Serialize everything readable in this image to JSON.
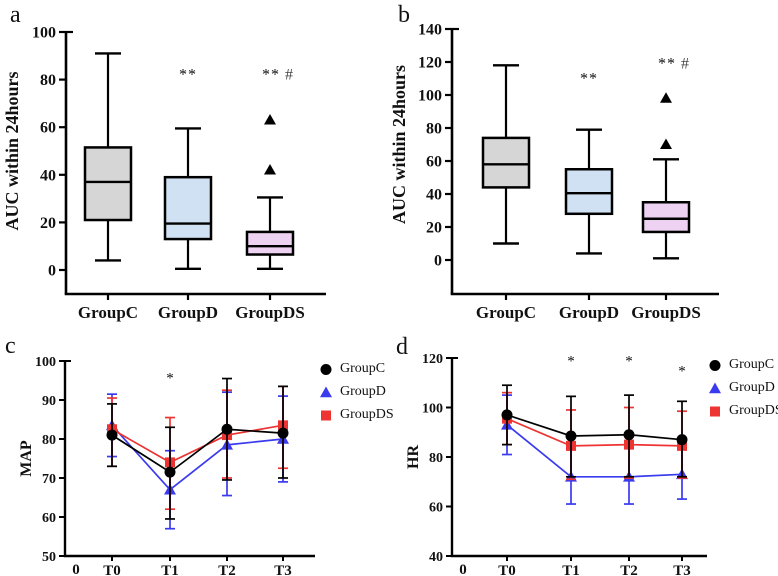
{
  "figure": {
    "panels": {
      "a": {
        "label": "a"
      },
      "b": {
        "label": "b"
      },
      "c": {
        "label": "c"
      },
      "d": {
        "label": "d"
      }
    }
  },
  "colors": {
    "axis": "#000000",
    "box_gray": "#d6d6d6",
    "box_blue": "#cfe1f3",
    "box_pink": "#eed2f2",
    "series_black": "#000000",
    "series_blue": "#3a3aee",
    "series_red": "#ee3333",
    "hash_mark": "#444444"
  },
  "chart_data": [
    {
      "id": "a",
      "type": "box",
      "ylabel": "AUC within 24hours",
      "ylim": [
        0,
        100
      ],
      "yticks": [
        0,
        20,
        40,
        60,
        80,
        100
      ],
      "categories": [
        "GroupC",
        "GroupD",
        "GroupDS"
      ],
      "boxes": [
        {
          "group": "GroupC",
          "fill": "#d6d6d6",
          "whisker_low": 4,
          "q1": 21,
          "median": 37,
          "q3": 51.5,
          "whisker_high": 91,
          "outliers": [],
          "sig": "",
          "sig_y": null
        },
        {
          "group": "GroupD",
          "fill": "#cfe1f3",
          "whisker_low": 0.5,
          "q1": 13,
          "median": 19.5,
          "q3": 39,
          "whisker_high": 59.5,
          "outliers": [],
          "sig": "**",
          "sig_y": 80
        },
        {
          "group": "GroupDS",
          "fill": "#eed2f2",
          "whisker_low": 0.5,
          "q1": 6.5,
          "median": 10,
          "q3": 16,
          "whisker_high": 30.5,
          "outliers": [
            42,
            63
          ],
          "sig": "** #",
          "sig_y": 80
        }
      ]
    },
    {
      "id": "b",
      "type": "box",
      "ylabel": "AUC within 24hours",
      "ylim": [
        0,
        140
      ],
      "yticks": [
        0,
        20,
        40,
        60,
        80,
        100,
        120,
        140
      ],
      "categories": [
        "GroupC",
        "GroupD",
        "GroupDS"
      ],
      "boxes": [
        {
          "group": "GroupC",
          "fill": "#d6d6d6",
          "whisker_low": 10,
          "q1": 44,
          "median": 58,
          "q3": 74,
          "whisker_high": 118,
          "outliers": [],
          "sig": "",
          "sig_y": null
        },
        {
          "group": "GroupD",
          "fill": "#cfe1f3",
          "whisker_low": 4,
          "q1": 28,
          "median": 40.5,
          "q3": 55,
          "whisker_high": 79,
          "outliers": [],
          "sig": "**",
          "sig_y": 107
        },
        {
          "group": "GroupDS",
          "fill": "#eed2f2",
          "whisker_low": 1,
          "q1": 17,
          "median": 25,
          "q3": 35,
          "whisker_high": 61,
          "outliers": [
            70,
            98
          ],
          "sig": "** #",
          "sig_y": 116
        }
      ]
    },
    {
      "id": "c",
      "type": "line",
      "ylabel": "MAP",
      "ylim": [
        50,
        100
      ],
      "yticks": [
        50,
        60,
        70,
        80,
        90,
        100
      ],
      "x_labels": [
        "T0",
        "T1",
        "T2",
        "T3"
      ],
      "origin_label": "0",
      "series": [
        {
          "name": "GroupC",
          "color": "#000000",
          "marker": "circle",
          "values": [
            81,
            71.5,
            82.5,
            81.5
          ],
          "err_low": [
            73,
            59.5,
            69.5,
            70
          ],
          "err_high": [
            89,
            83,
            95.5,
            93.5
          ]
        },
        {
          "name": "GroupD",
          "color": "#3a3aee",
          "marker": "triangle",
          "values": [
            83.5,
            67,
            78.5,
            80
          ],
          "err_low": [
            75.5,
            57,
            65.5,
            69
          ],
          "err_high": [
            91.5,
            77,
            92,
            91
          ]
        },
        {
          "name": "GroupDS",
          "color": "#ee3333",
          "marker": "square",
          "values": [
            82.5,
            74,
            81,
            83.5
          ],
          "err_low": [
            73,
            62,
            70,
            72.5
          ],
          "err_high": [
            90.5,
            85.5,
            92.5,
            93.5
          ]
        }
      ],
      "annotations": [
        {
          "x_index": 1,
          "y": 94.5,
          "text": "*"
        }
      ],
      "legend": [
        {
          "label": "GroupC",
          "marker": "circle",
          "color": "#000000"
        },
        {
          "label": "GroupD",
          "marker": "triangle",
          "color": "#3a3aee"
        },
        {
          "label": "GroupDS",
          "marker": "square",
          "color": "#ee3333"
        }
      ]
    },
    {
      "id": "d",
      "type": "line",
      "ylabel": "HR",
      "ylim": [
        40,
        120
      ],
      "yticks": [
        40,
        60,
        80,
        100,
        120
      ],
      "x_labels": [
        "T0",
        "T1",
        "T2",
        "T3"
      ],
      "origin_label": "0",
      "series": [
        {
          "name": "GroupC",
          "color": "#000000",
          "marker": "circle",
          "values": [
            97,
            88.5,
            89,
            87
          ],
          "err_low": [
            85,
            72,
            72,
            72
          ],
          "err_high": [
            109,
            104.5,
            105,
            102.5
          ]
        },
        {
          "name": "GroupD",
          "color": "#3a3aee",
          "marker": "triangle",
          "values": [
            93,
            72,
            72,
            73
          ],
          "err_low": [
            81,
            61,
            61,
            63
          ],
          "err_high": [
            105,
            83,
            83.5,
            83
          ]
        },
        {
          "name": "GroupDS",
          "color": "#ee3333",
          "marker": "square",
          "values": [
            95.5,
            84.5,
            85,
            84.5
          ],
          "err_low": [
            85,
            71,
            71.5,
            71.5
          ],
          "err_high": [
            106,
            99,
            100,
            98.5
          ]
        }
      ],
      "annotations": [
        {
          "x_index": 1,
          "y": 117,
          "text": "*"
        },
        {
          "x_index": 2,
          "y": 117,
          "text": "*"
        },
        {
          "x_index": 3,
          "y": 113,
          "text": "*"
        }
      ],
      "legend": [
        {
          "label": "GroupC",
          "marker": "circle",
          "color": "#000000"
        },
        {
          "label": "GroupD",
          "marker": "triangle",
          "color": "#3a3aee"
        },
        {
          "label": "GroupDS",
          "marker": "square",
          "color": "#ee3333"
        }
      ]
    }
  ]
}
